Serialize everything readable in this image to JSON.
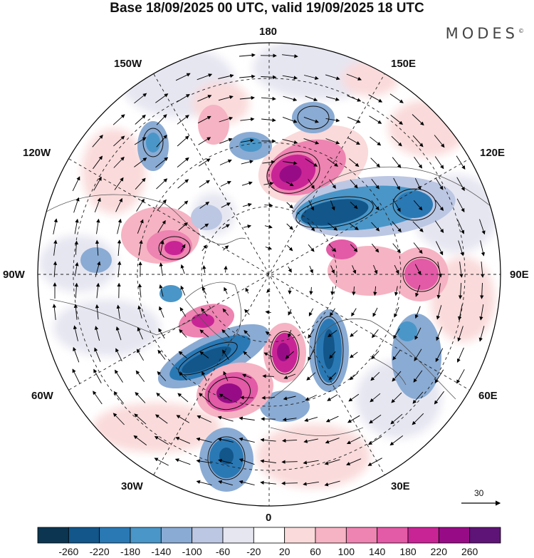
{
  "title": "Base 18/09/2025 00 UTC, valid 19/09/2025 18 UTC",
  "brand": "MODES",
  "brand_mark": "©",
  "longitude_labels": {
    "top": "180",
    "bottom": "0",
    "left": "90W",
    "right": "90E",
    "upper_left_outer": "150W",
    "upper_left_inner": "120W",
    "upper_right_outer": "150E",
    "upper_right_inner": "120E",
    "lower_left_inner": "60W",
    "lower_left_outer": "30W",
    "lower_right_inner": "60E",
    "lower_right_outer": "30E"
  },
  "reference_vector": {
    "label": "30"
  },
  "colorbar": {
    "ticks": [
      "-260",
      "-220",
      "-180",
      "-140",
      "-100",
      "-60",
      "-20",
      "20",
      "60",
      "100",
      "140",
      "180",
      "220",
      "260"
    ],
    "colors": [
      "#0c3551",
      "#12568a",
      "#2a79b5",
      "#4a96c8",
      "#8aabd3",
      "#bcc7e3",
      "#e6e6f1",
      "#ffffff",
      "#fadada",
      "#f6b3c3",
      "#ee84b1",
      "#e35aa6",
      "#c92496",
      "#970c86",
      "#5e1476"
    ]
  },
  "colors": {
    "neg_strong": "#12568a",
    "neg_mid": "#4a96c8",
    "neg_weak": "#bcc7e3",
    "pos_strong": "#970c86",
    "pos_mid": "#e35aa6",
    "pos_weak": "#fadada",
    "land_outline": "#555555"
  },
  "map_features": [
    {
      "id": "east-siberian-high",
      "sign": "positive",
      "level": 3
    },
    {
      "id": "north-pacific-low",
      "sign": "negative",
      "level": 3
    },
    {
      "id": "alaska-high",
      "sign": "positive",
      "level": 2
    },
    {
      "id": "kara-low",
      "sign": "negative",
      "level": 3
    },
    {
      "id": "scandinavia-high",
      "sign": "positive",
      "level": 3
    },
    {
      "id": "north-atlantic-low",
      "sign": "negative",
      "level": 3
    },
    {
      "id": "greenland-high",
      "sign": "positive",
      "level": 3
    },
    {
      "id": "iceland-low",
      "sign": "negative",
      "level": 2
    },
    {
      "id": "siberian-high",
      "sign": "positive",
      "level": 2
    },
    {
      "id": "central-asia-low",
      "sign": "negative",
      "level": 2
    }
  ]
}
